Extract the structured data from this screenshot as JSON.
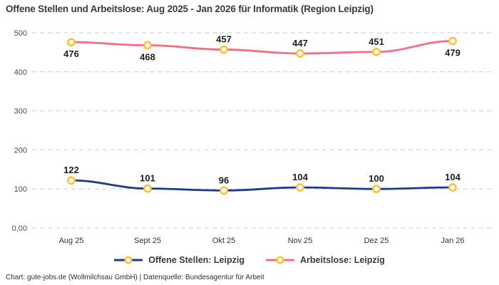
{
  "title": "Offene Stellen und Arbeitslose: Aug 2025 - Jan 2026 für Informatik (Region Leipzig)",
  "footer": "Chart: gute-jobs.de (Wollmilchsau GmbH) | Datenquelle: Bundesagentur für Arbeit",
  "chart_data": {
    "type": "line",
    "title": "Offene Stellen und Arbeitslose: Aug 2025 - Jan 2026 für Informatik (Region Leipzig)",
    "categories": [
      "Aug 25",
      "Sept 25",
      "Okt 25",
      "Nov 25",
      "Dez 25",
      "Jan 26"
    ],
    "series": [
      {
        "name": "Offene Stellen: Leipzig",
        "color": "#1e3a8f",
        "values": [
          122,
          101,
          96,
          104,
          100,
          104
        ],
        "label_placement": [
          "above",
          "above",
          "above",
          "above",
          "above",
          "above"
        ]
      },
      {
        "name": "Arbeitslose: Leipzig",
        "color": "#f66d84",
        "values": [
          476,
          468,
          457,
          447,
          451,
          479
        ],
        "label_placement": [
          "below",
          "below",
          "above",
          "above",
          "above",
          "below"
        ]
      }
    ],
    "marker_color": "#fdc331",
    "marker_fill": "#ffffff",
    "grid_color": "#cbcbcb",
    "y_ticks": [
      "0,00",
      "100",
      "200",
      "300",
      "400",
      "500"
    ],
    "y_tick_values": [
      0,
      100,
      200,
      300,
      400,
      500
    ],
    "ylim": [
      0,
      500
    ],
    "grid": true,
    "legend_position": "bottom",
    "source": "Chart: gute-jobs.de (Wollmilchsau GmbH) | Datenquelle: Bundesagentur für Arbeit"
  }
}
